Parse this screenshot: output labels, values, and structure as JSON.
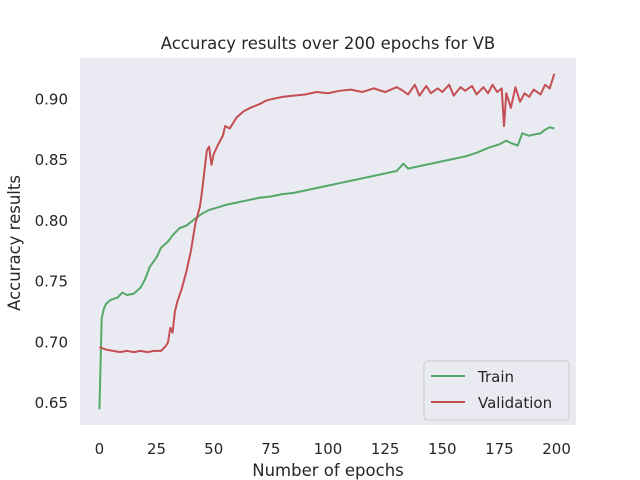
{
  "chart_data": {
    "type": "line",
    "title": "Accuracy results over 200 epochs for VB",
    "xlabel": "Number of epochs",
    "ylabel": "Accuracy results",
    "xlim": [
      -8.5,
      208.5
    ],
    "ylim": [
      0.632,
      0.934
    ],
    "x_ticks": [
      0,
      25,
      50,
      75,
      100,
      125,
      150,
      175,
      200
    ],
    "y_ticks": [
      0.65,
      0.7,
      0.75,
      0.8,
      0.85,
      0.9
    ],
    "y_tick_labels": [
      "0.65",
      "0.70",
      "0.75",
      "0.80",
      "0.85",
      "0.90"
    ],
    "grid": false,
    "background": "#eaeaf2",
    "legend_position": "lower-right",
    "series": [
      {
        "name": "Train",
        "color": "#55a868",
        "points": [
          [
            0,
            0.645
          ],
          [
            1,
            0.72
          ],
          [
            2,
            0.728
          ],
          [
            3,
            0.732
          ],
          [
            5,
            0.735
          ],
          [
            8,
            0.737
          ],
          [
            10,
            0.741
          ],
          [
            12,
            0.739
          ],
          [
            15,
            0.74
          ],
          [
            18,
            0.745
          ],
          [
            20,
            0.752
          ],
          [
            22,
            0.762
          ],
          [
            25,
            0.77
          ],
          [
            27,
            0.778
          ],
          [
            30,
            0.783
          ],
          [
            32,
            0.788
          ],
          [
            35,
            0.794
          ],
          [
            38,
            0.796
          ],
          [
            40,
            0.799
          ],
          [
            42,
            0.802
          ],
          [
            45,
            0.806
          ],
          [
            48,
            0.809
          ],
          [
            50,
            0.81
          ],
          [
            55,
            0.813
          ],
          [
            60,
            0.815
          ],
          [
            65,
            0.817
          ],
          [
            70,
            0.819
          ],
          [
            75,
            0.82
          ],
          [
            80,
            0.822
          ],
          [
            85,
            0.823
          ],
          [
            90,
            0.825
          ],
          [
            95,
            0.827
          ],
          [
            100,
            0.829
          ],
          [
            105,
            0.831
          ],
          [
            110,
            0.833
          ],
          [
            115,
            0.835
          ],
          [
            120,
            0.837
          ],
          [
            125,
            0.839
          ],
          [
            130,
            0.841
          ],
          [
            133,
            0.847
          ],
          [
            135,
            0.843
          ],
          [
            140,
            0.845
          ],
          [
            145,
            0.847
          ],
          [
            150,
            0.849
          ],
          [
            155,
            0.851
          ],
          [
            160,
            0.853
          ],
          [
            165,
            0.856
          ],
          [
            170,
            0.86
          ],
          [
            175,
            0.863
          ],
          [
            178,
            0.866
          ],
          [
            180,
            0.864
          ],
          [
            183,
            0.862
          ],
          [
            185,
            0.872
          ],
          [
            188,
            0.87
          ],
          [
            190,
            0.871
          ],
          [
            193,
            0.872
          ],
          [
            195,
            0.875
          ],
          [
            197,
            0.877
          ],
          [
            199,
            0.876
          ]
        ]
      },
      {
        "name": "Validation",
        "color": "#c44e52",
        "points": [
          [
            0,
            0.696
          ],
          [
            3,
            0.694
          ],
          [
            6,
            0.693
          ],
          [
            9,
            0.692
          ],
          [
            12,
            0.693
          ],
          [
            15,
            0.692
          ],
          [
            18,
            0.693
          ],
          [
            21,
            0.692
          ],
          [
            24,
            0.693
          ],
          [
            27,
            0.693
          ],
          [
            29,
            0.697
          ],
          [
            30,
            0.7
          ],
          [
            31,
            0.712
          ],
          [
            32,
            0.708
          ],
          [
            33,
            0.725
          ],
          [
            34,
            0.733
          ],
          [
            36,
            0.744
          ],
          [
            38,
            0.758
          ],
          [
            40,
            0.775
          ],
          [
            42,
            0.798
          ],
          [
            44,
            0.812
          ],
          [
            45,
            0.826
          ],
          [
            46,
            0.842
          ],
          [
            47,
            0.858
          ],
          [
            48,
            0.861
          ],
          [
            49,
            0.846
          ],
          [
            50,
            0.855
          ],
          [
            52,
            0.863
          ],
          [
            54,
            0.87
          ],
          [
            55,
            0.878
          ],
          [
            57,
            0.876
          ],
          [
            60,
            0.885
          ],
          [
            63,
            0.89
          ],
          [
            66,
            0.893
          ],
          [
            70,
            0.896
          ],
          [
            73,
            0.899
          ],
          [
            75,
            0.9
          ],
          [
            80,
            0.902
          ],
          [
            85,
            0.903
          ],
          [
            90,
            0.904
          ],
          [
            95,
            0.906
          ],
          [
            100,
            0.905
          ],
          [
            105,
            0.907
          ],
          [
            110,
            0.908
          ],
          [
            115,
            0.906
          ],
          [
            120,
            0.909
          ],
          [
            125,
            0.906
          ],
          [
            130,
            0.91
          ],
          [
            132,
            0.908
          ],
          [
            135,
            0.904
          ],
          [
            138,
            0.912
          ],
          [
            140,
            0.903
          ],
          [
            143,
            0.911
          ],
          [
            145,
            0.905
          ],
          [
            148,
            0.909
          ],
          [
            150,
            0.906
          ],
          [
            153,
            0.912
          ],
          [
            155,
            0.903
          ],
          [
            158,
            0.91
          ],
          [
            160,
            0.907
          ],
          [
            163,
            0.911
          ],
          [
            165,
            0.904
          ],
          [
            168,
            0.91
          ],
          [
            170,
            0.905
          ],
          [
            172,
            0.912
          ],
          [
            174,
            0.906
          ],
          [
            176,
            0.909
          ],
          [
            177,
            0.878
          ],
          [
            178,
            0.905
          ],
          [
            180,
            0.893
          ],
          [
            182,
            0.91
          ],
          [
            184,
            0.898
          ],
          [
            186,
            0.905
          ],
          [
            188,
            0.902
          ],
          [
            190,
            0.908
          ],
          [
            193,
            0.904
          ],
          [
            195,
            0.912
          ],
          [
            197,
            0.909
          ],
          [
            199,
            0.921
          ]
        ]
      }
    ]
  }
}
